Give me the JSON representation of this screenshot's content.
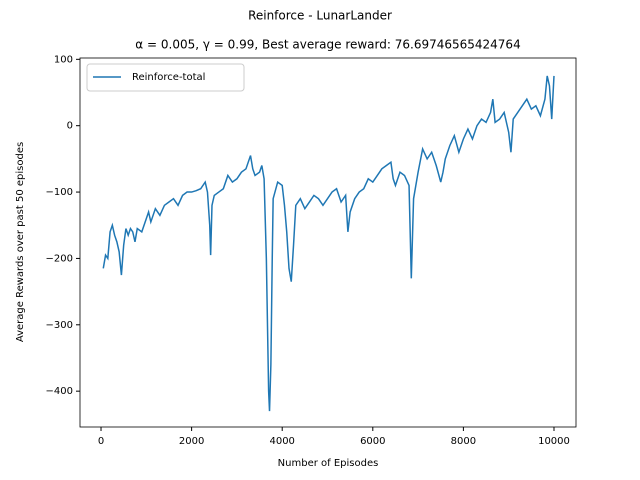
{
  "chart_data": {
    "type": "line",
    "title": "Reinforce - LunarLander",
    "subtitle": "α = 0.005, γ = 0.99,  Best average reward: 76.69746565424764",
    "x_label": "Number of Episodes",
    "y_label": "Average Rewards over past 50 episodes",
    "x": [
      50,
      100,
      150,
      200,
      250,
      300,
      350,
      400,
      450,
      500,
      550,
      600,
      650,
      700,
      750,
      800,
      900,
      1000,
      1050,
      1100,
      1200,
      1300,
      1400,
      1500,
      1600,
      1700,
      1800,
      1900,
      2000,
      2100,
      2200,
      2300,
      2350,
      2400,
      2420,
      2450,
      2500,
      2600,
      2700,
      2800,
      2900,
      3000,
      3100,
      3200,
      3300,
      3350,
      3400,
      3500,
      3550,
      3600,
      3650,
      3700,
      3720,
      3750,
      3780,
      3800,
      3900,
      4000,
      4050,
      4100,
      4150,
      4200,
      4250,
      4300,
      4400,
      4500,
      4600,
      4700,
      4800,
      4900,
      5000,
      5100,
      5200,
      5300,
      5400,
      5450,
      5500,
      5600,
      5700,
      5800,
      5900,
      6000,
      6100,
      6200,
      6300,
      6400,
      6450,
      6500,
      6600,
      6700,
      6800,
      6850,
      6900,
      7000,
      7100,
      7200,
      7300,
      7400,
      7500,
      7550,
      7600,
      7700,
      7800,
      7900,
      8000,
      8100,
      8200,
      8300,
      8400,
      8500,
      8600,
      8650,
      8700,
      8800,
      8900,
      9000,
      9050,
      9100,
      9200,
      9300,
      9400,
      9500,
      9600,
      9700,
      9800,
      9850,
      9900,
      9950,
      10000
    ],
    "series": [
      {
        "name": "Reinforce-total",
        "color": "#1f77b4",
        "values": [
          -215,
          -195,
          -200,
          -160,
          -150,
          -165,
          -175,
          -190,
          -225,
          -180,
          -155,
          -165,
          -155,
          -160,
          -175,
          -155,
          -160,
          -140,
          -130,
          -145,
          -125,
          -135,
          -120,
          -115,
          -110,
          -120,
          -105,
          -100,
          -100,
          -98,
          -95,
          -85,
          -100,
          -150,
          -195,
          -120,
          -105,
          -100,
          -95,
          -75,
          -85,
          -80,
          -70,
          -65,
          -45,
          -65,
          -75,
          -70,
          -60,
          -80,
          -200,
          -400,
          -430,
          -360,
          -200,
          -110,
          -85,
          -90,
          -120,
          -160,
          -215,
          -235,
          -180,
          -120,
          -110,
          -125,
          -115,
          -105,
          -110,
          -120,
          -110,
          -100,
          -95,
          -115,
          -105,
          -160,
          -130,
          -110,
          -100,
          -95,
          -80,
          -85,
          -75,
          -65,
          -60,
          -55,
          -80,
          -90,
          -70,
          -75,
          -90,
          -230,
          -110,
          -70,
          -35,
          -50,
          -40,
          -60,
          -85,
          -70,
          -50,
          -30,
          -15,
          -40,
          -20,
          -5,
          -20,
          0,
          10,
          5,
          20,
          40,
          5,
          10,
          20,
          -10,
          -40,
          10,
          20,
          30,
          40,
          25,
          30,
          15,
          40,
          75,
          60,
          10,
          75
        ]
      }
    ],
    "xlim": [
      -464,
      10486
    ],
    "ylim": [
      -454,
      102
    ],
    "xticks": [
      0,
      2000,
      4000,
      6000,
      8000,
      10000
    ],
    "yticks": [
      {
        "value": -400,
        "label": "−400"
      },
      {
        "value": -300,
        "label": "−300"
      },
      {
        "value": -200,
        "label": "−200"
      },
      {
        "value": -100,
        "label": "−100"
      },
      0,
      100
    ],
    "legend": "upper left"
  }
}
